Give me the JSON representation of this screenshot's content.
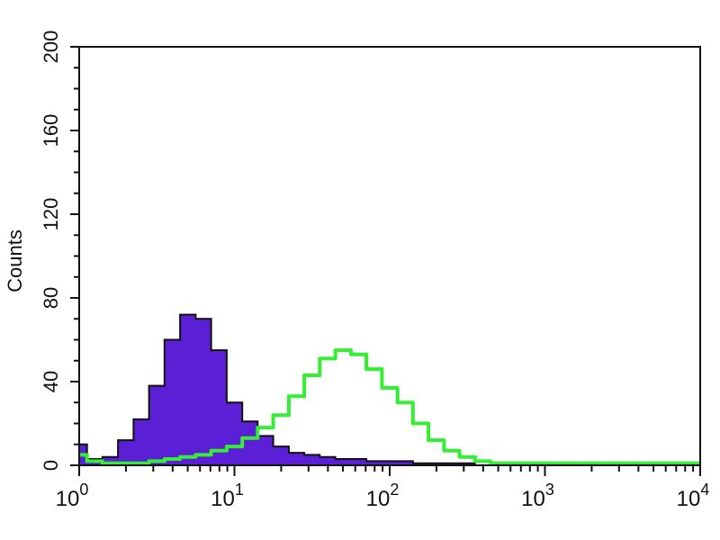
{
  "chart_data": {
    "type": "area",
    "title": "",
    "xlabel": "",
    "ylabel": "Counts",
    "x_scale": "log",
    "xlim": [
      1,
      10000
    ],
    "ylim": [
      0,
      200
    ],
    "grid": false,
    "x_ticks": [
      {
        "base": "10",
        "exp": "0",
        "value": 1
      },
      {
        "base": "10",
        "exp": "1",
        "value": 10
      },
      {
        "base": "10",
        "exp": "2",
        "value": 100
      },
      {
        "base": "10",
        "exp": "3",
        "value": 1000
      },
      {
        "base": "10",
        "exp": "4",
        "value": 10000
      }
    ],
    "y_ticks": [
      "0",
      "40",
      "80",
      "120",
      "160",
      "200"
    ],
    "x": [
      1,
      1.26,
      1.58,
      2,
      2.51,
      3.16,
      3.98,
      5.01,
      6.31,
      7.94,
      10,
      12.6,
      15.8,
      20,
      25.1,
      31.6,
      39.8,
      50.1,
      63.1,
      79.4,
      100,
      126,
      158,
      200,
      251,
      316,
      398,
      501,
      631,
      794,
      1000,
      1259,
      1585,
      1995,
      2512,
      3162,
      3981,
      5012,
      6310,
      7943,
      10000
    ],
    "series": [
      {
        "style": "filled",
        "color": "#5b1fd6",
        "outline": "#111111",
        "values": [
          10,
          3,
          4,
          12,
          22,
          38,
          60,
          72,
          70,
          55,
          30,
          21,
          14,
          9,
          6,
          5,
          4,
          3,
          3,
          2,
          2,
          2,
          1,
          1,
          1,
          1,
          0,
          0,
          0,
          0,
          0,
          0,
          0,
          0,
          0,
          0,
          0,
          0,
          0,
          0,
          0
        ]
      },
      {
        "style": "line",
        "color": "#33ee33",
        "values": [
          5,
          2,
          1,
          1,
          1,
          2,
          3,
          4,
          5,
          7,
          9,
          13,
          18,
          24,
          33,
          43,
          51,
          55,
          53,
          46,
          37,
          30,
          20,
          12,
          7,
          4,
          2,
          1,
          1,
          1,
          1,
          1,
          1,
          1,
          1,
          1,
          1,
          1,
          1,
          1,
          1
        ]
      }
    ]
  }
}
